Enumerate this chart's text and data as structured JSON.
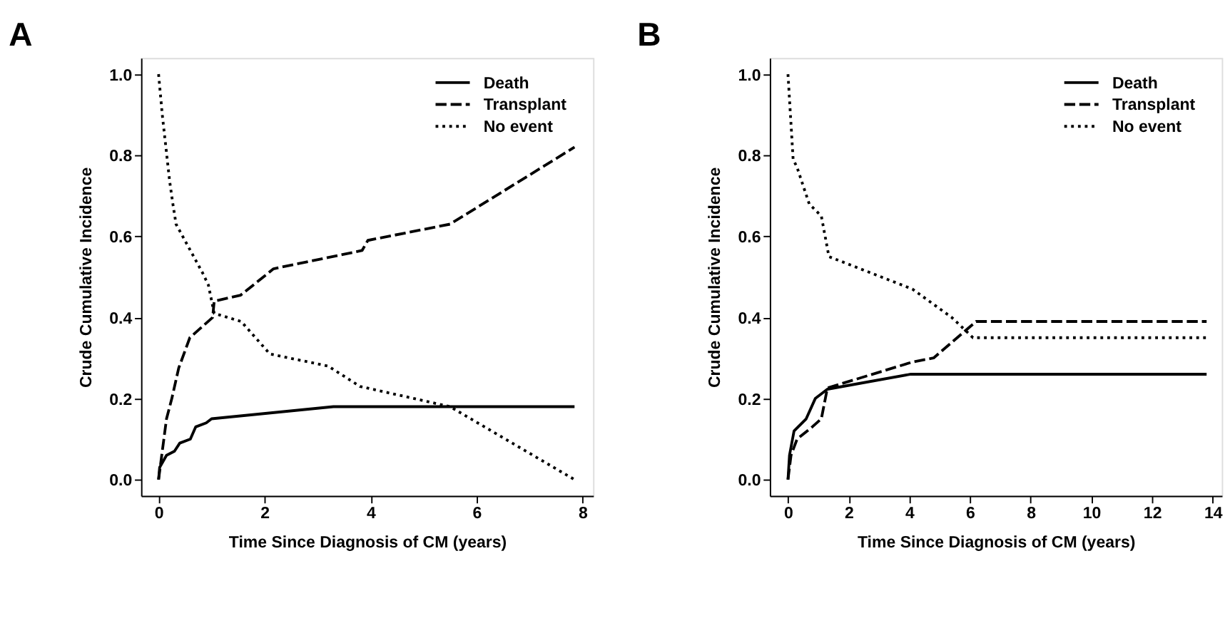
{
  "chart_data": [
    {
      "type": "line",
      "title": "A",
      "xlabel": "Time Since Diagnosis of CM (years)",
      "ylabel": "Crude Cumulative Incidence",
      "xlim": [
        -0.33,
        8.2
      ],
      "ylim": [
        -0.04,
        1.04
      ],
      "xticks": [
        0,
        2,
        4,
        6,
        8
      ],
      "yticks": [
        {
          "value": 0,
          "label": "0.0"
        },
        {
          "value": 0.2,
          "label": "0.2"
        },
        {
          "value": 0.4,
          "label": "0.4"
        },
        {
          "value": 0.6,
          "label": "0.6"
        },
        {
          "value": 0.8,
          "label": "0.8"
        },
        {
          "value": 1,
          "label": "1.0"
        }
      ],
      "grid": false,
      "legend": "top right",
      "series": [
        {
          "name": "Death",
          "color": "#000000",
          "line_style": "solid",
          "x": [
            0,
            0.02,
            0.15,
            0.3,
            0.4,
            0.6,
            0.7,
            0.9,
            1.0,
            3.3,
            7.85
          ],
          "values": [
            0,
            0.03,
            0.06,
            0.07,
            0.09,
            0.1,
            0.13,
            0.14,
            0.15,
            0.18,
            0.18
          ]
        },
        {
          "name": "Transplant",
          "color": "#000000",
          "line_style": "dashed",
          "x": [
            0,
            0.05,
            0.15,
            0.25,
            0.38,
            0.59,
            1.02,
            1.05,
            1.55,
            2.17,
            3.84,
            3.95,
            5.5,
            7.85
          ],
          "values": [
            0,
            0.05,
            0.15,
            0.2,
            0.275,
            0.35,
            0.4,
            0.44,
            0.455,
            0.52,
            0.565,
            0.59,
            0.63,
            0.82
          ]
        },
        {
          "name": "No event",
          "color": "#000000",
          "line_style": "dotted",
          "x": [
            0,
            0.07,
            0.21,
            0.27,
            0.33,
            0.83,
            0.94,
            1.05,
            1.56,
            2.1,
            3.2,
            3.8,
            5.5,
            7.85
          ],
          "values": [
            1.0,
            0.9,
            0.735,
            0.68,
            0.63,
            0.51,
            0.48,
            0.41,
            0.39,
            0.31,
            0.28,
            0.23,
            0.18,
            0
          ]
        }
      ]
    },
    {
      "type": "line",
      "title": "B",
      "xlabel": "Time Since Diagnosis of CM (years)",
      "ylabel": "Crude Cumulative Incidence",
      "xlim": [
        -0.6,
        14.3
      ],
      "ylim": [
        -0.04,
        1.04
      ],
      "xticks": [
        0,
        2,
        4,
        6,
        8,
        10,
        12,
        14
      ],
      "yticks": [
        {
          "value": 0,
          "label": "0.0"
        },
        {
          "value": 0.2,
          "label": "0.2"
        },
        {
          "value": 0.4,
          "label": "0.4"
        },
        {
          "value": 0.6,
          "label": "0.6"
        },
        {
          "value": 0.8,
          "label": "0.8"
        },
        {
          "value": 1,
          "label": "1.0"
        }
      ],
      "grid": false,
      "legend": "top right",
      "series": [
        {
          "name": "Death",
          "color": "#000000",
          "line_style": "solid",
          "x": [
            0,
            0.05,
            0.2,
            0.6,
            0.9,
            1.3,
            4.05,
            13.8
          ],
          "values": [
            0,
            0.06,
            0.12,
            0.15,
            0.2,
            0.223,
            0.26,
            0.26
          ]
        },
        {
          "name": "Transplant",
          "color": "#000000",
          "line_style": "dashed",
          "x": [
            0,
            0.1,
            0.3,
            0.8,
            1.1,
            1.3,
            4.1,
            4.8,
            6.2,
            13.8
          ],
          "values": [
            0,
            0.06,
            0.1,
            0.13,
            0.15,
            0.226,
            0.29,
            0.3,
            0.39,
            0.39
          ]
        },
        {
          "name": "No event",
          "color": "#000000",
          "line_style": "dotted",
          "x": [
            0,
            0.17,
            0.3,
            0.7,
            1.1,
            1.35,
            4.1,
            5.4,
            6.1,
            13.8
          ],
          "values": [
            1.0,
            0.79,
            0.77,
            0.68,
            0.65,
            0.55,
            0.47,
            0.4,
            0.35,
            0.35
          ]
        }
      ]
    }
  ]
}
